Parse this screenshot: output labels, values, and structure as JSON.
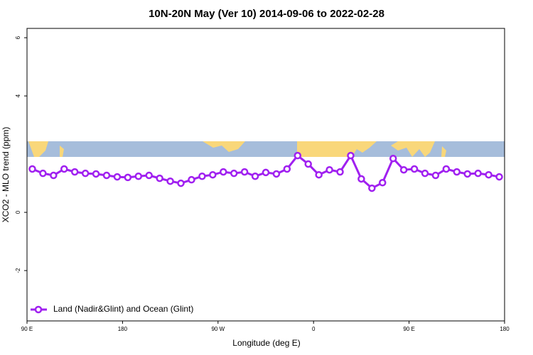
{
  "chart_data": {
    "type": "line",
    "title": "10N-20N May (Ver 10)   2014-09-06 to 2022-02-28",
    "x_label": "Longitude (deg E)",
    "y_label": "XCO2 - MLO trend (ppm)",
    "x": [
      95,
      105,
      115,
      125,
      135,
      145,
      155,
      165,
      175,
      185,
      195,
      205,
      215,
      225,
      235,
      245,
      255,
      265,
      275,
      285,
      295,
      305,
      315,
      325,
      335,
      345,
      355,
      365,
      375,
      385,
      395,
      405,
      415,
      425,
      435,
      445,
      455,
      465,
      475,
      485,
      495,
      505,
      515,
      525,
      535
    ],
    "series": [
      {
        "name": "Land (Nadir&Glint) and Ocean (Glint)",
        "color": "#a020f0",
        "values": [
          1.49,
          1.34,
          1.27,
          1.49,
          1.39,
          1.34,
          1.32,
          1.27,
          1.22,
          1.2,
          1.24,
          1.27,
          1.17,
          1.07,
          1.0,
          1.12,
          1.24,
          1.29,
          1.39,
          1.34,
          1.39,
          1.24,
          1.37,
          1.32,
          1.49,
          1.95,
          1.66,
          1.29,
          1.46,
          1.39,
          1.95,
          1.15,
          0.83,
          1.02,
          1.85,
          1.46,
          1.49,
          1.34,
          1.27,
          1.49,
          1.39,
          1.32,
          1.34,
          1.29,
          1.22
        ]
      }
    ],
    "xlim": [
      90,
      540
    ],
    "xticks": [
      {
        "value": 90,
        "label": "90 E"
      },
      180,
      {
        "value": 270,
        "label": "90 W"
      },
      {
        "value": 360,
        "label": "0"
      },
      {
        "value": 450,
        "label": "90 E"
      },
      {
        "value": 540,
        "label": "180"
      }
    ],
    "ylim": [
      -3.73,
      6.32
    ],
    "yticks": [
      -2,
      0,
      4,
      6
    ],
    "legend": "bottom-left"
  }
}
